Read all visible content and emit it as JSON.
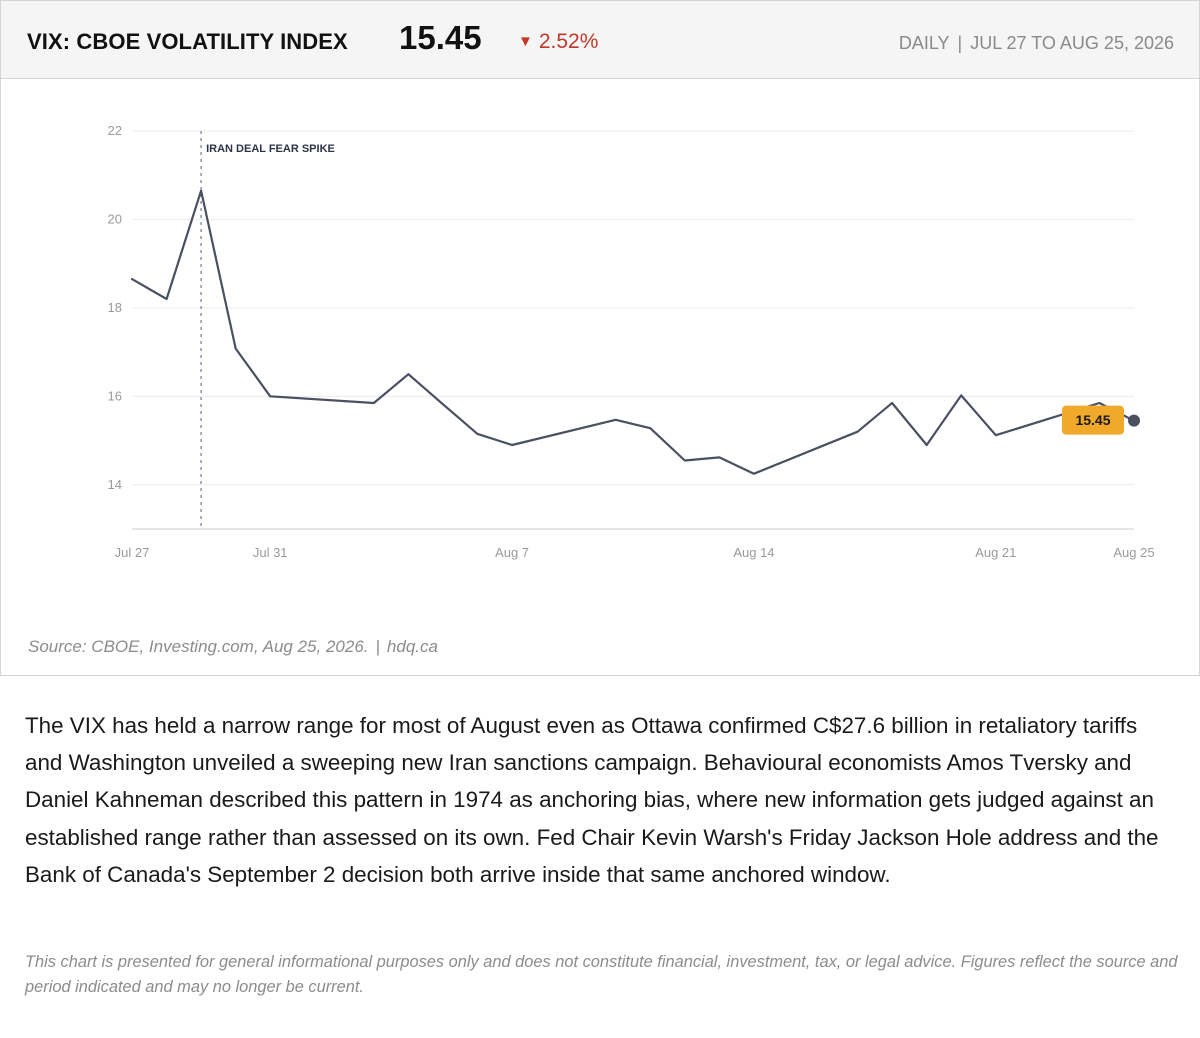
{
  "header": {
    "title": "VIX: CBOE VOLATILITY INDEX",
    "value": "15.45",
    "change_arrow": "▼",
    "change": "2.52%",
    "change_color": "#c0392b",
    "frequency": "DAILY",
    "separator": "|",
    "date_range": "JUL 27 TO AUG 25, 2026"
  },
  "chart_data": {
    "type": "line",
    "x": [
      "Jul 27",
      "Jul 28",
      "Jul 29",
      "Jul 30",
      "Jul 31",
      "Aug 3",
      "Aug 4",
      "Aug 5",
      "Aug 6",
      "Aug 7",
      "Aug 10",
      "Aug 11",
      "Aug 12",
      "Aug 13",
      "Aug 14",
      "Aug 17",
      "Aug 18",
      "Aug 19",
      "Aug 20",
      "Aug 21",
      "Aug 24",
      "Aug 25"
    ],
    "x_dates": [
      "2026-07-27",
      "2026-07-28",
      "2026-07-29",
      "2026-07-30",
      "2026-07-31",
      "2026-08-03",
      "2026-08-04",
      "2026-08-05",
      "2026-08-06",
      "2026-08-07",
      "2026-08-10",
      "2026-08-11",
      "2026-08-12",
      "2026-08-13",
      "2026-08-14",
      "2026-08-17",
      "2026-08-18",
      "2026-08-19",
      "2026-08-20",
      "2026-08-21",
      "2026-08-24",
      "2026-08-25"
    ],
    "values": [
      18.65,
      18.2,
      20.65,
      17.08,
      16.0,
      15.85,
      16.5,
      15.82,
      15.15,
      14.9,
      15.47,
      15.28,
      14.55,
      14.62,
      14.25,
      15.2,
      15.85,
      14.9,
      16.02,
      15.12,
      15.85,
      15.45
    ],
    "ylim": [
      13,
      22
    ],
    "yticks": [
      14,
      16,
      18,
      20,
      22
    ],
    "xtick_labels": [
      "Jul 27",
      "Jul 31",
      "Aug 7",
      "Aug 14",
      "Aug 21",
      "Aug 25"
    ],
    "line_color": "#4a5060",
    "grid": true,
    "annotation": {
      "label": "IRAN DEAL FEAR SPIKE",
      "x": "Jul 29"
    },
    "last_value_label": "15.45",
    "last_value_badge_color": "#f0a92b"
  },
  "source": {
    "text": "Source: CBOE, Investing.com, Aug 25, 2026.",
    "separator": "|",
    "site": "hdq.ca"
  },
  "body_text": "The VIX has held a narrow range for most of August even as Ottawa confirmed C$27.6 billion in retaliatory tariffs and Washington unveiled a sweeping new Iran sanctions campaign. Behavioural economists Amos Tversky and Daniel Kahneman described this pattern in 1974 as anchoring bias, where new information gets judged against an established range rather than assessed on its own. Fed Chair Kevin Warsh's Friday Jackson Hole address and the Bank of Canada's September 2 decision both arrive inside that same anchored window.",
  "disclaimer": "This chart is presented for general informational purposes only and does not constitute financial, investment, tax, or legal advice. Figures reflect the source and period indicated and may no longer be current."
}
